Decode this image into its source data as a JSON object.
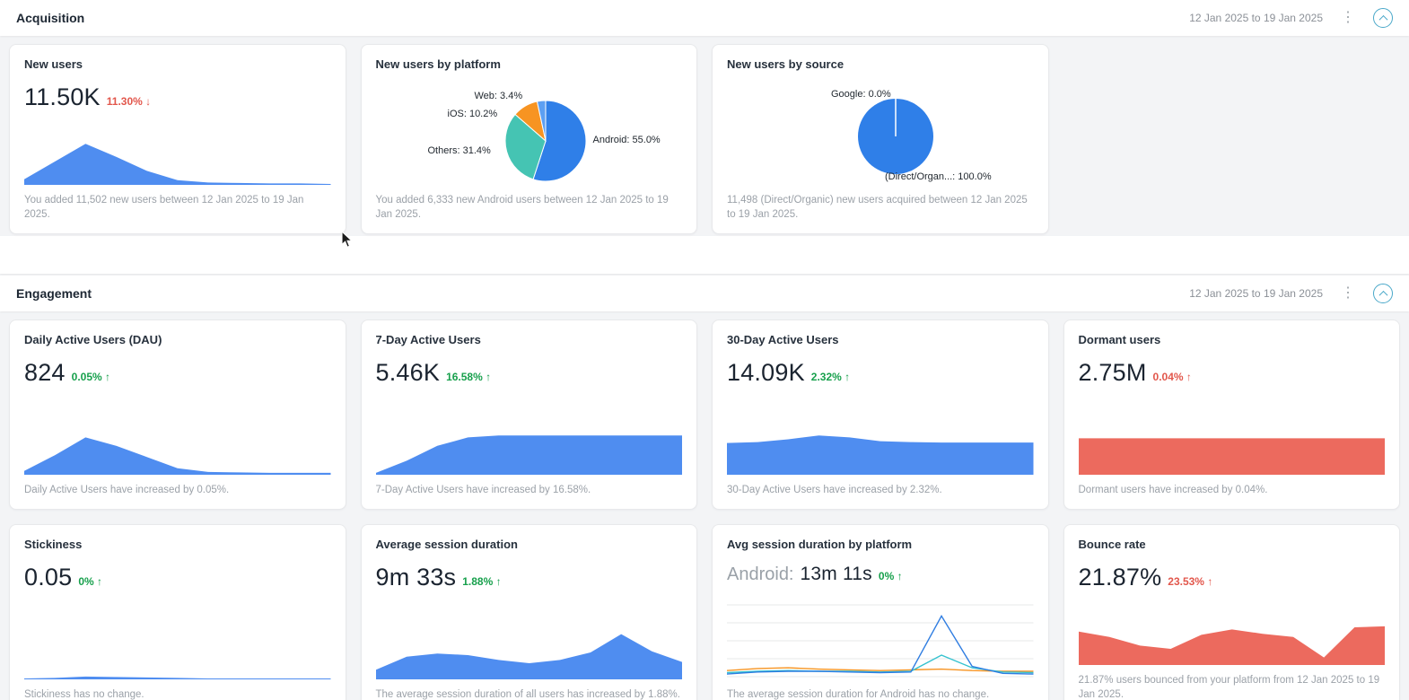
{
  "colors": {
    "chart_blue": "#4f8df0",
    "chart_red": "#ec6a5e",
    "pie_android_blue": "#2f7fe8",
    "pie_teal": "#45c4b3",
    "pie_orange": "#f79422",
    "pie_web_blue": "#5c9ff2",
    "positive_text": "#17a04c",
    "negative_text": "#e2574c",
    "accent": "#49a8c9"
  },
  "sections": [
    {
      "title": "Acquisition",
      "date_range": "12 Jan 2025 to 19 Jan 2025",
      "cards": [
        {
          "title": "New users",
          "value": "11.50K",
          "change": "11.30%",
          "change_dir": "↓",
          "change_color": "negative",
          "description": "You added 11,502 new users between 12 Jan 2025 to 19 Jan 2025.",
          "chart": {
            "type": "area",
            "color": "#4f8df0",
            "max": 100,
            "values": [
              12,
              50,
              88,
              60,
              30,
              10,
              5,
              4,
              3,
              3,
              2
            ]
          }
        },
        {
          "title": "New users by platform",
          "description": "You added 6,333 new Android users between 12 Jan 2025 to 19 Jan 2025.",
          "chart": {
            "type": "pie",
            "slices": [
              {
                "label": "Android",
                "value": 55.0,
                "color": "#2f7fe8"
              },
              {
                "label": "Others",
                "value": 31.4,
                "color": "#45c4b3"
              },
              {
                "label": "iOS",
                "value": 10.2,
                "color": "#f79422"
              },
              {
                "label": "Web",
                "value": 3.4,
                "color": "#5c9ff2"
              }
            ]
          },
          "labels": {
            "web": "Web: 3.4%",
            "ios": "iOS: 10.2%",
            "others": "Others: 31.4%",
            "android": "Android: 55.0%"
          }
        },
        {
          "title": "New users by source",
          "description": "11,498 (Direct/Organic) new users acquired between 12 Jan 2025 to 19 Jan 2025.",
          "chart": {
            "type": "pie",
            "slices": [
              {
                "label": "Google",
                "value": 0.0,
                "color": "#2f7fe8"
              },
              {
                "label": "(Direct/Organic)",
                "value": 100.0,
                "color": "#2f7fe8"
              }
            ]
          },
          "labels": {
            "google": "Google: 0.0%",
            "direct": "(Direct/Organ...: 100.0%"
          }
        }
      ]
    },
    {
      "title": "Engagement",
      "date_range": "12 Jan 2025 to 19 Jan 2025",
      "cards": [
        {
          "title": "Daily Active Users (DAU)",
          "value": "824",
          "change": "0.05%",
          "change_dir": "↑",
          "change_color": "positive",
          "description": "Daily Active Users have increased by 0.05%.",
          "chart": {
            "type": "area",
            "color": "#4f8df0",
            "max": 100,
            "values": [
              8,
              42,
              80,
              62,
              38,
              14,
              6,
              5,
              4,
              4,
              4
            ]
          }
        },
        {
          "title": "7-Day Active Users",
          "value": "5.46K",
          "change": "16.58%",
          "change_dir": "↑",
          "change_color": "positive",
          "description": "7-Day Active Users have increased by 16.58%.",
          "chart": {
            "type": "area",
            "color": "#4f8df0",
            "max": 100,
            "values": [
              4,
              30,
              62,
              80,
              84,
              84,
              84,
              84,
              84,
              84,
              84
            ]
          }
        },
        {
          "title": "30-Day Active Users",
          "value": "14.09K",
          "change": "2.32%",
          "change_dir": "↑",
          "change_color": "positive",
          "description": "30-Day Active Users have increased by 2.32%.",
          "chart": {
            "type": "area",
            "color": "#4f8df0",
            "max": 100,
            "values": [
              68,
              70,
              76,
              84,
              80,
              72,
              70,
              69,
              69,
              69,
              69
            ]
          }
        },
        {
          "title": "Dormant users",
          "value": "2.75M",
          "change": "0.04%",
          "change_dir": "↑",
          "change_color": "negative",
          "description": "Dormant users have increased by 0.04%.",
          "chart": {
            "type": "area",
            "color": "#ec6a5e",
            "max": 100,
            "values": [
              78,
              78,
              78,
              78,
              78,
              78,
              78,
              78,
              78,
              78,
              78
            ]
          }
        },
        {
          "title": "Stickiness",
          "value": "0.05",
          "change": "0%",
          "change_dir": "↑",
          "change_color": "positive",
          "description": "Stickiness has no change.",
          "chart": {
            "type": "area",
            "color": "#4f8df0",
            "max": 100,
            "values": [
              2,
              3,
              6,
              5,
              4,
              3,
              2,
              2,
              2,
              2,
              2
            ]
          }
        },
        {
          "title": "Average session duration",
          "value": "9m 33s",
          "change": "1.88%",
          "change_dir": "↑",
          "change_color": "positive",
          "description": "The average session duration of all users has increased by 1.88%.",
          "chart": {
            "type": "area",
            "color": "#4f8df0",
            "max": 100,
            "values": [
              18,
              42,
              48,
              45,
              36,
              30,
              36,
              50,
              84,
              52,
              32
            ]
          }
        },
        {
          "title": "Avg session duration by platform",
          "value_prefix": "Android:",
          "value": "13m 11s",
          "change": "0%",
          "change_dir": "↑",
          "change_color": "positive",
          "description": "The average session duration for Android has no change.",
          "chart": {
            "type": "multiline",
            "grid": 5,
            "series": [
              {
                "name": "orange",
                "color": "#f79422",
                "values": [
                  10,
                  13,
                  14,
                  12,
                  11,
                  10,
                  11,
                  12,
                  10,
                  9,
                  9
                ]
              },
              {
                "name": "teal",
                "color": "#35c2cf",
                "values": [
                  7,
                  9,
                  10,
                  9,
                  9,
                  8,
                  9,
                  32,
                  14,
                  8,
                  7
                ]
              },
              {
                "name": "blue",
                "color": "#2f7de1",
                "values": [
                  5,
                  8,
                  9,
                  9,
                  8,
                  7,
                  8,
                  88,
                  16,
                  6,
                  5
                ]
              }
            ]
          }
        },
        {
          "title": "Bounce rate",
          "value": "21.87%",
          "change": "23.53%",
          "change_dir": "↑",
          "change_color": "negative",
          "description": "21.87% users bounced from your platform from 12 Jan 2025 to 19 Jan 2025.",
          "chart": {
            "type": "area",
            "color": "#ec6a5e",
            "max": 100,
            "values": [
              62,
              52,
              36,
              30,
              56,
              66,
              58,
              52,
              14,
              70,
              72
            ]
          }
        }
      ]
    }
  ]
}
